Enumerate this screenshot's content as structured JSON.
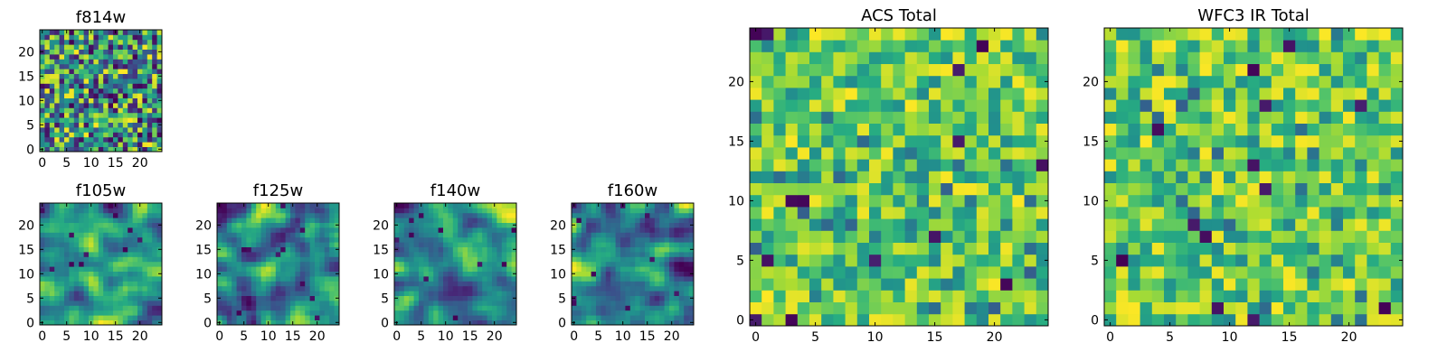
{
  "chart_data": [
    {
      "type": "heatmap",
      "name": "f814w",
      "title": "f814w",
      "grid": [
        25,
        25
      ],
      "xlim": [
        0,
        24
      ],
      "ylim": [
        0,
        24
      ],
      "x_ticks": [
        0,
        5,
        10,
        15,
        20
      ],
      "y_ticks": [
        0,
        5,
        10,
        15,
        20
      ],
      "colormap": "viridis",
      "pattern": "uncorrelated noise"
    },
    {
      "type": "heatmap",
      "name": "f105w",
      "title": "f105w",
      "grid": [
        25,
        25
      ],
      "xlim": [
        0,
        24
      ],
      "ylim": [
        0,
        24
      ],
      "x_ticks": [
        0,
        5,
        10,
        15,
        20
      ],
      "y_ticks": [
        0,
        5,
        10,
        15,
        20
      ],
      "colormap": "viridis",
      "pattern": "smooth correlated noise"
    },
    {
      "type": "heatmap",
      "name": "f125w",
      "title": "f125w",
      "grid": [
        25,
        25
      ],
      "xlim": [
        0,
        24
      ],
      "ylim": [
        0,
        24
      ],
      "x_ticks": [
        0,
        5,
        10,
        15,
        20
      ],
      "y_ticks": [
        0,
        5,
        10,
        15,
        20
      ],
      "colormap": "viridis",
      "pattern": "smooth correlated noise"
    },
    {
      "type": "heatmap",
      "name": "f140w",
      "title": "f140w",
      "grid": [
        25,
        25
      ],
      "xlim": [
        0,
        24
      ],
      "ylim": [
        0,
        24
      ],
      "x_ticks": [
        0,
        5,
        10,
        15,
        20
      ],
      "y_ticks": [
        0,
        5,
        10,
        15,
        20
      ],
      "colormap": "viridis",
      "pattern": "smooth correlated noise"
    },
    {
      "type": "heatmap",
      "name": "f160w",
      "title": "f160w",
      "grid": [
        25,
        25
      ],
      "xlim": [
        0,
        24
      ],
      "ylim": [
        0,
        24
      ],
      "x_ticks": [
        0,
        5,
        10,
        15,
        20
      ],
      "y_ticks": [
        0,
        5,
        10,
        15,
        20
      ],
      "colormap": "viridis",
      "pattern": "smooth correlated noise"
    },
    {
      "type": "heatmap",
      "name": "acs-total",
      "title": "ACS Total",
      "grid": [
        25,
        25
      ],
      "xlim": [
        0,
        24
      ],
      "ylim": [
        0,
        24
      ],
      "x_ticks": [
        0,
        5,
        10,
        15,
        20
      ],
      "y_ticks": [
        0,
        5,
        10,
        15,
        20
      ],
      "colormap": "viridis",
      "pattern": "uncorrelated noise, mostly high values"
    },
    {
      "type": "heatmap",
      "name": "wfc3-ir-total",
      "title": "WFC3 IR Total",
      "grid": [
        25,
        25
      ],
      "xlim": [
        0,
        24
      ],
      "ylim": [
        0,
        24
      ],
      "x_ticks": [
        0,
        5,
        10,
        15,
        20
      ],
      "y_ticks": [
        0,
        5,
        10,
        15,
        20
      ],
      "colormap": "viridis",
      "pattern": "uncorrelated noise, mostly high values"
    }
  ]
}
